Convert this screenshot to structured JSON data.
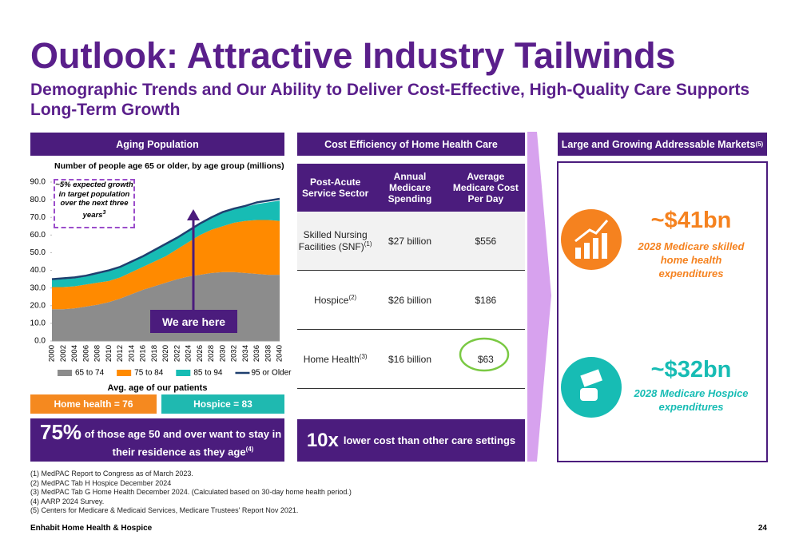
{
  "title": "Outlook: Attractive Industry Tailwinds",
  "subtitle": "Demographic Trends and Our Ability to Deliver Cost-Effective, High-Quality Care Supports Long-Term Growth",
  "left_panel": {
    "header": "Aging Population",
    "callout": "~5% expected growth in target population over the next three years",
    "callout_note": "3",
    "marker": "We are here",
    "avg_age_label": "Avg. age of our patients",
    "home_health_age": "Home health = 76",
    "hospice_age": "Hospice = 83",
    "stat": "75%",
    "stat_text": "of those age 50 and over want to stay in their residence as they age",
    "stat_note": "(4)"
  },
  "chart_data": {
    "type": "area",
    "stacked": true,
    "title": "Number of people age 65 or older, by age group (millions)",
    "x": [
      2000,
      2002,
      2004,
      2006,
      2008,
      2010,
      2012,
      2014,
      2016,
      2018,
      2020,
      2022,
      2024,
      2026,
      2028,
      2030,
      2032,
      2034,
      2036,
      2038,
      2040
    ],
    "xlim": [
      2000,
      2040
    ],
    "series": [
      {
        "name": "65 to 74",
        "color": "#8c8c8c",
        "values": [
          18,
          18,
          18.5,
          19.5,
          20.5,
          22,
          24,
          26.5,
          29,
          31,
          33,
          35,
          36.5,
          37.5,
          38.5,
          39,
          39,
          38.5,
          38,
          37.5,
          37.5
        ]
      },
      {
        "name": "75 to 84",
        "color": "#ff8a00",
        "values": [
          12.5,
          12.5,
          12.5,
          12.5,
          12.5,
          12,
          12,
          12.5,
          13,
          14,
          15,
          17,
          19.5,
          22.5,
          24.5,
          26,
          28,
          29.5,
          30.5,
          31,
          30.5
        ]
      },
      {
        "name": "85 to 94",
        "color": "#17bcb4",
        "values": [
          4,
          4.5,
          4.5,
          4.5,
          5,
          5.5,
          5.5,
          5.5,
          5.5,
          6,
          6.5,
          6,
          6,
          6,
          6.5,
          7.5,
          7.5,
          8,
          9,
          10,
          11.5
        ]
      },
      {
        "name": "95 or Older",
        "color": "#1f3f6f",
        "values": [
          0.5,
          0.5,
          0.5,
          0.5,
          0.5,
          0.5,
          0.5,
          0.5,
          0.5,
          0.5,
          0.5,
          0.5,
          0.5,
          0.5,
          0.5,
          0.5,
          0.5,
          0.5,
          1,
          1,
          1
        ]
      }
    ],
    "ylim": [
      0,
      90
    ],
    "yticks": [
      {
        "value": 0,
        "label": "0.0"
      },
      {
        "value": 10,
        "label": "10.0"
      },
      {
        "value": 20,
        "label": "20.0"
      },
      {
        "value": 30,
        "label": "30.0"
      },
      {
        "value": 40,
        "label": "40.0"
      },
      {
        "value": 50,
        "label": "50.0"
      },
      {
        "value": 60,
        "label": "60.0"
      },
      {
        "value": 70,
        "label": "70.0"
      },
      {
        "value": 80,
        "label": "80.0"
      },
      {
        "value": 90,
        "label": "90.0"
      }
    ],
    "legend": "bottom"
  },
  "middle_panel": {
    "header": "Cost Efficiency of Home Health Care",
    "columns": [
      "Post-Acute Service Sector",
      "Annual Medicare Spending",
      "Average Medicare Cost Per Day"
    ],
    "rows": [
      {
        "sector": "Skilled Nursing Facilities (SNF)",
        "note": "(1)",
        "spending": "$27 billion",
        "cost": "$556"
      },
      {
        "sector": "Hospice",
        "note": "(2)",
        "spending": "$26 billion",
        "cost": "$186"
      },
      {
        "sector": "Home Health",
        "note": "(3)",
        "spending": "$16 billion",
        "cost": "$63"
      }
    ],
    "stat": "10x",
    "stat_text": "lower cost than other care settings"
  },
  "right_panel": {
    "header": "Large and Growing Addressable Markets",
    "header_note": "(5)",
    "markets": [
      {
        "value": "~$41bn",
        "desc": "2028 Medicare skilled home health expenditures"
      },
      {
        "value": "~$32bn",
        "desc": "2028 Medicare Hospice expenditures"
      }
    ]
  },
  "footnotes": [
    "(1) MedPAC Report to Congress as of March 2023.",
    "(2) MedPAC Tab H Hospice December 2024",
    "(3) MedPAC Tab G Home Health December 2024. (Calculated based on 30-day home health period.)",
    "(4) AARP 2024 Survey.",
    "(5) Centers for Medicare & Medicaid Services, Medicare Trustees' Report Nov 2021."
  ],
  "footer": "Enhabit Home Health & Hospice",
  "page_number": "24"
}
